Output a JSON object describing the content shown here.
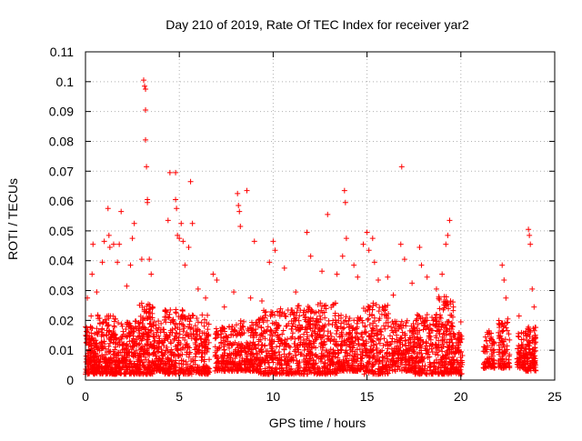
{
  "chart_data": {
    "type": "scatter",
    "title": "Day 210 of 2019, Rate Of TEC Index for receiver yar2",
    "xlabel": "GPS time / hours",
    "ylabel": "ROTI / TECUs",
    "xlim": [
      0,
      25
    ],
    "ylim": [
      0,
      0.11
    ],
    "xticks": [
      0,
      5,
      10,
      15,
      20,
      25
    ],
    "xtick_labels": [
      "0",
      "5",
      "10",
      "15",
      "20",
      "25"
    ],
    "yticks": [
      0,
      0.01,
      0.02,
      0.03,
      0.04,
      0.05,
      0.06,
      0.07,
      0.08,
      0.09,
      0.1,
      0.11
    ],
    "ytick_labels": [
      "0",
      "0.01",
      "0.02",
      "0.03",
      "0.04",
      "0.05",
      "0.06",
      "0.07",
      "0.08",
      "0.09",
      "0.1",
      "0.11"
    ],
    "grid": true,
    "marker": "+",
    "color": "#ff0000",
    "series": [
      {
        "name": "ROTI",
        "points": [
          [
            0.1,
            0.0275
          ],
          [
            0.3,
            0.0215
          ],
          [
            0.35,
            0.0355
          ],
          [
            0.4,
            0.0455
          ],
          [
            0.6,
            0.0295
          ],
          [
            0.9,
            0.0395
          ],
          [
            1.0,
            0.0465
          ],
          [
            1.2,
            0.0575
          ],
          [
            1.25,
            0.0485
          ],
          [
            1.3,
            0.0445
          ],
          [
            1.5,
            0.0455
          ],
          [
            1.7,
            0.0395
          ],
          [
            1.8,
            0.0455
          ],
          [
            1.9,
            0.0565
          ],
          [
            2.2,
            0.0315
          ],
          [
            2.4,
            0.0385
          ],
          [
            2.5,
            0.0475
          ],
          [
            2.6,
            0.0525
          ],
          [
            3.0,
            0.0405
          ],
          [
            3.1,
            0.1005
          ],
          [
            3.15,
            0.0985
          ],
          [
            3.2,
            0.0975
          ],
          [
            3.2,
            0.0905
          ],
          [
            3.2,
            0.0805
          ],
          [
            3.25,
            0.0715
          ],
          [
            3.3,
            0.0605
          ],
          [
            3.3,
            0.0595
          ],
          [
            3.4,
            0.0405
          ],
          [
            3.5,
            0.0355
          ],
          [
            4.4,
            0.0535
          ],
          [
            4.5,
            0.0695
          ],
          [
            4.8,
            0.0695
          ],
          [
            4.8,
            0.0605
          ],
          [
            4.85,
            0.0575
          ],
          [
            4.9,
            0.0485
          ],
          [
            5.0,
            0.0475
          ],
          [
            5.1,
            0.0525
          ],
          [
            5.2,
            0.0465
          ],
          [
            5.3,
            0.0385
          ],
          [
            5.5,
            0.0445
          ],
          [
            5.6,
            0.0665
          ],
          [
            5.7,
            0.0525
          ],
          [
            6.0,
            0.0305
          ],
          [
            6.4,
            0.0275
          ],
          [
            6.8,
            0.0355
          ],
          [
            7.0,
            0.0335
          ],
          [
            7.4,
            0.0245
          ],
          [
            7.9,
            0.0295
          ],
          [
            8.1,
            0.0625
          ],
          [
            8.15,
            0.0585
          ],
          [
            8.2,
            0.0565
          ],
          [
            8.25,
            0.0515
          ],
          [
            8.6,
            0.0635
          ],
          [
            8.8,
            0.0275
          ],
          [
            9.0,
            0.0465
          ],
          [
            9.4,
            0.0265
          ],
          [
            9.8,
            0.0395
          ],
          [
            10.0,
            0.0465
          ],
          [
            10.1,
            0.0435
          ],
          [
            10.6,
            0.0375
          ],
          [
            11.2,
            0.0295
          ],
          [
            11.8,
            0.0495
          ],
          [
            12.0,
            0.0415
          ],
          [
            12.6,
            0.0365
          ],
          [
            12.9,
            0.0555
          ],
          [
            13.4,
            0.0355
          ],
          [
            13.7,
            0.0415
          ],
          [
            13.8,
            0.0635
          ],
          [
            13.85,
            0.0595
          ],
          [
            13.9,
            0.0475
          ],
          [
            14.3,
            0.0385
          ],
          [
            14.5,
            0.0345
          ],
          [
            14.8,
            0.0455
          ],
          [
            15.0,
            0.0495
          ],
          [
            15.1,
            0.0435
          ],
          [
            15.3,
            0.0475
          ],
          [
            15.4,
            0.0395
          ],
          [
            15.6,
            0.0335
          ],
          [
            16.1,
            0.0345
          ],
          [
            16.4,
            0.0285
          ],
          [
            16.8,
            0.0455
          ],
          [
            16.85,
            0.0715
          ],
          [
            17.0,
            0.0405
          ],
          [
            17.4,
            0.0325
          ],
          [
            17.8,
            0.0445
          ],
          [
            17.9,
            0.0385
          ],
          [
            18.2,
            0.0345
          ],
          [
            18.7,
            0.0305
          ],
          [
            19.0,
            0.0355
          ],
          [
            19.2,
            0.0455
          ],
          [
            19.3,
            0.0485
          ],
          [
            19.4,
            0.0535
          ],
          [
            19.6,
            0.0245
          ],
          [
            20.0,
            0.0195
          ],
          [
            21.5,
            0.0165
          ],
          [
            22.2,
            0.0385
          ],
          [
            22.3,
            0.0335
          ],
          [
            22.4,
            0.0275
          ],
          [
            22.5,
            0.0205
          ],
          [
            23.1,
            0.0215
          ],
          [
            23.6,
            0.0505
          ],
          [
            23.65,
            0.0485
          ],
          [
            23.7,
            0.0455
          ],
          [
            23.8,
            0.0305
          ],
          [
            23.9,
            0.0245
          ]
        ],
        "bands": [
          {
            "x": [
              0.0,
              0.6
            ],
            "y": [
              0.002,
              0.018
            ],
            "n": 140
          },
          {
            "x": [
              0.6,
              1.6
            ],
            "y": [
              0.002,
              0.022
            ],
            "n": 200
          },
          {
            "x": [
              1.6,
              2.8
            ],
            "y": [
              0.002,
              0.02
            ],
            "n": 220
          },
          {
            "x": [
              2.8,
              3.6
            ],
            "y": [
              0.002,
              0.026
            ],
            "n": 180
          },
          {
            "x": [
              3.6,
              4.2
            ],
            "y": [
              0.003,
              0.02
            ],
            "n": 110
          },
          {
            "x": [
              4.2,
              5.4
            ],
            "y": [
              0.002,
              0.024
            ],
            "n": 200
          },
          {
            "x": [
              5.4,
              6.6
            ],
            "y": [
              0.002,
              0.022
            ],
            "n": 190
          },
          {
            "x": [
              6.9,
              8.0
            ],
            "y": [
              0.003,
              0.018
            ],
            "n": 160
          },
          {
            "x": [
              8.0,
              9.2
            ],
            "y": [
              0.003,
              0.02
            ],
            "n": 180
          },
          {
            "x": [
              9.2,
              10.6
            ],
            "y": [
              0.002,
              0.024
            ],
            "n": 220
          },
          {
            "x": [
              10.6,
              12.0
            ],
            "y": [
              0.002,
              0.025
            ],
            "n": 230
          },
          {
            "x": [
              12.0,
              13.4
            ],
            "y": [
              0.002,
              0.026
            ],
            "n": 230
          },
          {
            "x": [
              13.4,
              14.8
            ],
            "y": [
              0.003,
              0.022
            ],
            "n": 210
          },
          {
            "x": [
              14.8,
              16.2
            ],
            "y": [
              0.002,
              0.026
            ],
            "n": 220
          },
          {
            "x": [
              16.2,
              17.5
            ],
            "y": [
              0.003,
              0.02
            ],
            "n": 190
          },
          {
            "x": [
              17.5,
              18.8
            ],
            "y": [
              0.002,
              0.022
            ],
            "n": 200
          },
          {
            "x": [
              18.8,
              19.6
            ],
            "y": [
              0.002,
              0.028
            ],
            "n": 170
          },
          {
            "x": [
              19.6,
              20.1
            ],
            "y": [
              0.002,
              0.016
            ],
            "n": 80
          },
          {
            "x": [
              21.2,
              21.8
            ],
            "y": [
              0.004,
              0.016
            ],
            "n": 80
          },
          {
            "x": [
              22.0,
              22.6
            ],
            "y": [
              0.004,
              0.02
            ],
            "n": 90
          },
          {
            "x": [
              23.0,
              23.4
            ],
            "y": [
              0.004,
              0.016
            ],
            "n": 60
          },
          {
            "x": [
              23.4,
              24.0
            ],
            "y": [
              0.003,
              0.018
            ],
            "n": 110
          }
        ]
      }
    ]
  }
}
